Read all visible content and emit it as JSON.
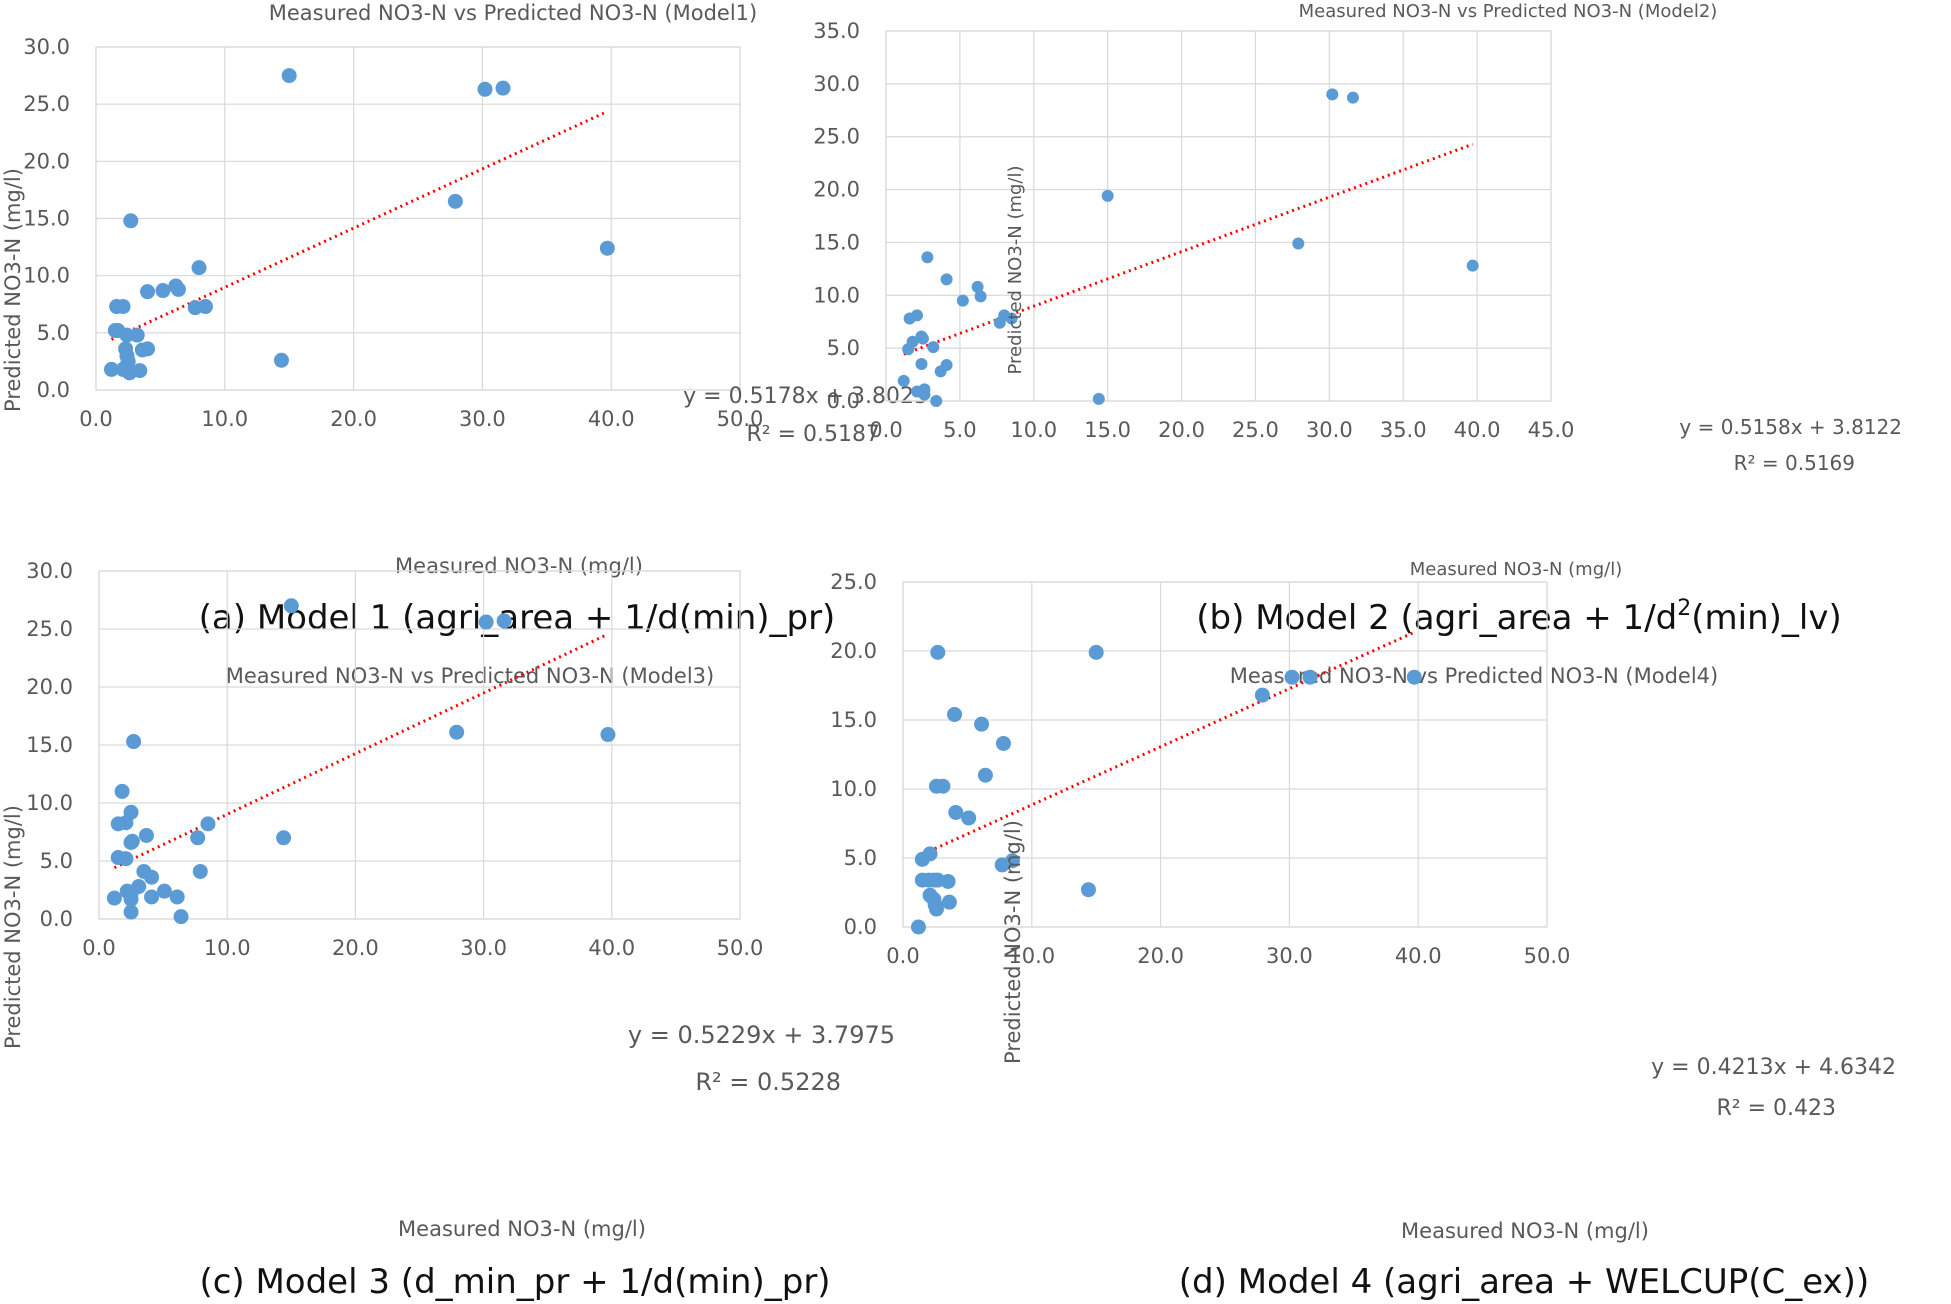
{
  "chart_data": [
    {
      "type": "scatter",
      "title": "Measured NO3-N vs Predicted NO3-N (Model1)",
      "xlabel": "Measured NO3-N (mg/l)",
      "ylabel": "Predicted NO3-N (mg/l)",
      "xlim": [
        0,
        50
      ],
      "ylim": [
        0,
        30
      ],
      "xticks": [
        "0.0",
        "10.0",
        "20.0",
        "30.0",
        "40.0",
        "50.0"
      ],
      "yticks": [
        "0.0",
        "5.0",
        "10.0",
        "15.0",
        "20.0",
        "25.0",
        "30.0"
      ],
      "grid": true,
      "equation": "y = 0.5178x + 3.8023",
      "r2": "R² = 0.5187",
      "trendline": {
        "slope": 0.5178,
        "intercept": 3.8023,
        "x_range": [
          1.2,
          39.7
        ]
      },
      "caption": "(a) Model 1 (agri_area + 1/d(min)_pr)",
      "points": [
        [
          15.0,
          27.5
        ],
        [
          30.2,
          26.3
        ],
        [
          31.6,
          26.4
        ],
        [
          27.9,
          16.5
        ],
        [
          39.7,
          12.4
        ],
        [
          2.7,
          14.8
        ],
        [
          8.0,
          10.7
        ],
        [
          6.2,
          9.1
        ],
        [
          6.4,
          8.8
        ],
        [
          5.2,
          8.7
        ],
        [
          4.0,
          8.6
        ],
        [
          8.5,
          7.3
        ],
        [
          7.7,
          7.2
        ],
        [
          1.6,
          7.3
        ],
        [
          2.1,
          7.3
        ],
        [
          1.5,
          5.2
        ],
        [
          1.7,
          5.2
        ],
        [
          2.4,
          4.8
        ],
        [
          3.2,
          4.8
        ],
        [
          2.3,
          3.6
        ],
        [
          3.6,
          3.5
        ],
        [
          4.0,
          3.6
        ],
        [
          2.4,
          3.0
        ],
        [
          2.5,
          2.5
        ],
        [
          2.4,
          2.1
        ],
        [
          1.2,
          1.8
        ],
        [
          2.1,
          1.8
        ],
        [
          2.6,
          1.5
        ],
        [
          3.4,
          1.7
        ],
        [
          14.4,
          2.6
        ]
      ]
    },
    {
      "type": "scatter",
      "title": "Measured NO3-N vs Predicted NO3-N (Model2)",
      "xlabel": "Measured NO3-N (mg/l)",
      "ylabel": "Predicted NO3-N (mg/l)",
      "xlim": [
        0,
        45
      ],
      "ylim": [
        0,
        35
      ],
      "xticks": [
        "0.0",
        "5.0",
        "10.0",
        "15.0",
        "20.0",
        "25.0",
        "30.0",
        "35.0",
        "40.0",
        "45.0"
      ],
      "yticks": [
        "0.0",
        "5.0",
        "10.0",
        "15.0",
        "20.0",
        "25.0",
        "30.0",
        "35.0"
      ],
      "grid": true,
      "equation": "y = 0.5158x + 3.8122",
      "r2": "R² = 0.5169",
      "trendline": {
        "slope": 0.5158,
        "intercept": 3.8122,
        "x_range": [
          1.2,
          39.7
        ]
      },
      "caption": "(b) Model 2 (agri_area + 1/d",
      "caption_sup": "2",
      "caption_tail": "(min)_lv)",
      "points": [
        [
          30.2,
          29.0
        ],
        [
          31.6,
          28.7
        ],
        [
          15.0,
          19.4
        ],
        [
          27.9,
          14.9
        ],
        [
          39.7,
          12.8
        ],
        [
          2.8,
          13.6
        ],
        [
          4.1,
          11.5
        ],
        [
          6.2,
          10.8
        ],
        [
          6.4,
          9.9
        ],
        [
          5.2,
          9.5
        ],
        [
          8.0,
          8.1
        ],
        [
          8.5,
          7.8
        ],
        [
          7.7,
          7.4
        ],
        [
          1.6,
          7.8
        ],
        [
          2.1,
          8.1
        ],
        [
          2.4,
          6.1
        ],
        [
          2.5,
          5.9
        ],
        [
          1.8,
          5.6
        ],
        [
          1.5,
          4.9
        ],
        [
          3.2,
          5.1
        ],
        [
          2.4,
          3.5
        ],
        [
          4.1,
          3.4
        ],
        [
          3.7,
          2.8
        ],
        [
          2.1,
          0.9
        ],
        [
          2.6,
          1.1
        ],
        [
          2.6,
          0.6
        ],
        [
          1.2,
          1.9
        ],
        [
          3.4,
          0.0
        ],
        [
          14.4,
          0.2
        ]
      ]
    },
    {
      "type": "scatter",
      "title": "Measured NO3-N vs Predicted NO3-N (Model3)",
      "xlabel": "Measured NO3-N (mg/l)",
      "ylabel": "Predicted NO3-N (mg/l)",
      "xlim": [
        0,
        50
      ],
      "ylim": [
        0,
        30
      ],
      "xticks": [
        "0.0",
        "10.0",
        "20.0",
        "30.0",
        "40.0",
        "50.0"
      ],
      "yticks": [
        "0.0",
        "5.0",
        "10.0",
        "15.0",
        "20.0",
        "25.0",
        "30.0"
      ],
      "grid": true,
      "equation": "y = 0.5229x + 3.7975",
      "r2": "R² = 0.5228",
      "trendline": {
        "slope": 0.5229,
        "intercept": 3.7975,
        "x_range": [
          1.2,
          39.7
        ]
      },
      "caption": "(c) Model 3 (d_min_pr + 1/d(min)_pr)",
      "points": [
        [
          15.0,
          27.0
        ],
        [
          30.2,
          25.6
        ],
        [
          31.6,
          25.7
        ],
        [
          27.9,
          16.1
        ],
        [
          39.7,
          15.9
        ],
        [
          2.7,
          15.3
        ],
        [
          1.8,
          11.0
        ],
        [
          2.5,
          9.2
        ],
        [
          1.5,
          8.2
        ],
        [
          2.1,
          8.3
        ],
        [
          3.7,
          7.2
        ],
        [
          8.5,
          8.2
        ],
        [
          7.7,
          7.0
        ],
        [
          14.4,
          7.0
        ],
        [
          2.5,
          6.6
        ],
        [
          2.6,
          6.7
        ],
        [
          1.5,
          5.3
        ],
        [
          2.1,
          5.2
        ],
        [
          3.5,
          4.1
        ],
        [
          7.9,
          4.1
        ],
        [
          4.1,
          3.6
        ],
        [
          3.1,
          2.8
        ],
        [
          2.2,
          2.4
        ],
        [
          5.1,
          2.4
        ],
        [
          2.5,
          2.2
        ],
        [
          1.2,
          1.8
        ],
        [
          2.5,
          1.7
        ],
        [
          4.1,
          1.9
        ],
        [
          6.1,
          1.9
        ],
        [
          2.5,
          0.6
        ],
        [
          6.4,
          0.2
        ]
      ]
    },
    {
      "type": "scatter",
      "title": "Measured NO3-N vs Predicted NO3-N (Model4)",
      "xlabel": "Measured NO3-N (mg/l)",
      "ylabel": "Predicted NO3-N (mg/l)",
      "xlim": [
        0,
        50
      ],
      "ylim": [
        0,
        25
      ],
      "xticks": [
        "0.0",
        "10.0",
        "20.0",
        "30.0",
        "40.0",
        "50.0"
      ],
      "yticks": [
        "0.0",
        "5.0",
        "10.0",
        "15.0",
        "20.0",
        "25.0"
      ],
      "grid": true,
      "equation": "y = 0.4213x + 4.6342",
      "r2": "R² = 0.423",
      "trendline": {
        "slope": 0.4213,
        "intercept": 4.6342,
        "x_range": [
          1.2,
          39.7
        ]
      },
      "caption": "(d) Model 4 (agri_area + WELCUP(C_ex))",
      "points": [
        [
          2.7,
          19.9
        ],
        [
          15.0,
          19.9
        ],
        [
          27.9,
          16.8
        ],
        [
          30.2,
          18.1
        ],
        [
          31.6,
          18.1
        ],
        [
          39.7,
          18.1
        ],
        [
          4.0,
          15.4
        ],
        [
          6.1,
          14.7
        ],
        [
          7.8,
          13.3
        ],
        [
          6.4,
          11.0
        ],
        [
          2.6,
          10.2
        ],
        [
          3.1,
          10.2
        ],
        [
          4.1,
          8.3
        ],
        [
          5.1,
          7.9
        ],
        [
          2.1,
          5.3
        ],
        [
          1.5,
          4.9
        ],
        [
          7.7,
          4.5
        ],
        [
          8.5,
          4.8
        ],
        [
          1.5,
          3.4
        ],
        [
          2.0,
          3.4
        ],
        [
          2.4,
          3.4
        ],
        [
          2.7,
          3.4
        ],
        [
          3.5,
          3.3
        ],
        [
          14.4,
          2.7
        ],
        [
          2.1,
          2.3
        ],
        [
          2.4,
          2.0
        ],
        [
          2.5,
          1.6
        ],
        [
          2.6,
          1.3
        ],
        [
          3.6,
          1.8
        ],
        [
          1.2,
          0.0
        ]
      ]
    }
  ]
}
